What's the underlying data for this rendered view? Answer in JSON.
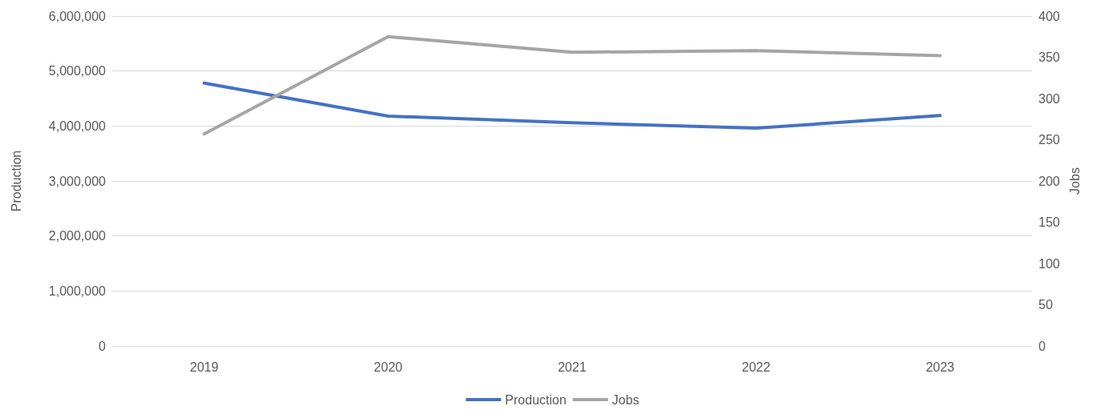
{
  "chart_data": {
    "type": "line",
    "ylabel": "Production",
    "y2label": "Jobs",
    "categories": [
      "2019",
      "2020",
      "2021",
      "2022",
      "2023"
    ],
    "series": [
      {
        "name": "Production",
        "color": "#4472c4",
        "values": [
          4780000,
          4180000,
          4060000,
          3960000,
          4190000
        ]
      },
      {
        "name": "Jobs",
        "color": "#a5a5a5",
        "axis": "y2",
        "values": [
          257,
          375,
          356,
          358,
          352
        ]
      }
    ],
    "ylim": [
      0,
      6000000
    ],
    "yticks": [
      {
        "value": 0,
        "label": "0"
      },
      {
        "value": 1000000,
        "label": "1,000,000"
      },
      {
        "value": 2000000,
        "label": "2,000,000"
      },
      {
        "value": 3000000,
        "label": "3,000,000"
      },
      {
        "value": 4000000,
        "label": "4,000,000"
      },
      {
        "value": 5000000,
        "label": "5,000,000"
      },
      {
        "value": 6000000,
        "label": "6,000,000"
      }
    ],
    "y2lim": [
      0,
      400
    ],
    "y2ticks": [
      0,
      50,
      100,
      150,
      200,
      250,
      300,
      350,
      400
    ],
    "grid": "y",
    "legend": "bottom",
    "marker": "none",
    "line_style": "solid"
  }
}
